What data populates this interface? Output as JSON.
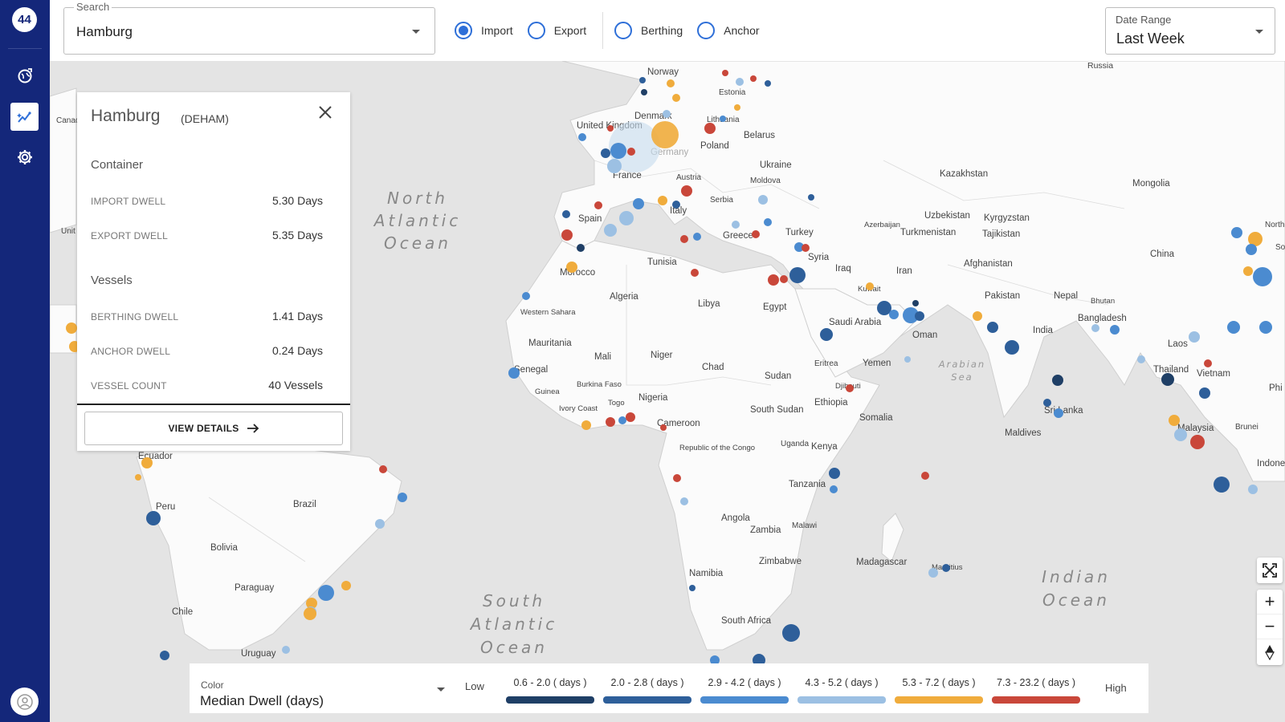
{
  "app": {
    "logo_text": "44"
  },
  "sidebar": {
    "items": [
      {
        "name": "globe-icon"
      },
      {
        "name": "analytics-icon",
        "active": true
      },
      {
        "name": "gear-icon"
      }
    ],
    "profile_icon": "user-circle-icon"
  },
  "search": {
    "label": "Search",
    "value": "Hamburg"
  },
  "flow_filter": {
    "options": [
      {
        "label": "Import",
        "selected": true
      },
      {
        "label": "Export",
        "selected": false
      }
    ]
  },
  "dwell_filter": {
    "options": [
      {
        "label": "Berthing",
        "selected": false
      },
      {
        "label": "Anchor",
        "selected": false
      }
    ]
  },
  "date_range": {
    "label": "Date Range",
    "value": "Last Week"
  },
  "port_card": {
    "port_name": "Hamburg",
    "port_code": "(DEHAM)",
    "container_section": "Container",
    "import_dwell_label": "IMPORT DWELL",
    "import_dwell_value": "5.30 Days",
    "export_dwell_label": "EXPORT DWELL",
    "export_dwell_value": "5.35 Days",
    "vessels_section": "Vessels",
    "berthing_dwell_label": "BERTHING DWELL",
    "berthing_dwell_value": "1.41 Days",
    "anchor_dwell_label": "ANCHOR DWELL",
    "anchor_dwell_value": "0.24 Days",
    "vessel_count_label": "VESSEL COUNT",
    "vessel_count_value": "40 Vessels",
    "view_details_label": "VIEW DETAILS"
  },
  "legend": {
    "color_label": "Color",
    "color_value": "Median Dwell (days)",
    "low_label": "Low",
    "high_label": "High",
    "buckets": [
      {
        "label": "0.6 - 2.0 ( days )",
        "color": "#1f3f66"
      },
      {
        "label": "2.0 - 2.8 ( days )",
        "color": "#2e5f9a"
      },
      {
        "label": "2.9 - 4.2 ( days )",
        "color": "#4b8bd0"
      },
      {
        "label": "4.3 - 5.2 ( days )",
        "color": "#9cc0e3"
      },
      {
        "label": "5.3 - 7.2 ( days )",
        "color": "#f0ac3c"
      },
      {
        "label": "7.3 - 23.2 ( days )",
        "color": "#c9473a"
      }
    ]
  },
  "map": {
    "country_labels": [
      "Norway",
      "Estonia",
      "United Kingdom",
      "Denmark",
      "Germany",
      "Lithuania",
      "Belarus",
      "Poland",
      "France",
      "Austria",
      "Ukraine",
      "Moldova",
      "Serbia",
      "Italy",
      "Spain",
      "Greece",
      "Turkey",
      "Syria",
      "Iraq",
      "Iran",
      "Azerbaijan",
      "Uzbekistan",
      "Kyrgyzstan",
      "Turkmenistan",
      "Tajikistan",
      "Afghanistan",
      "Kazakhstan",
      "Mongolia",
      "China",
      "Pakistan",
      "Nepal",
      "Bhutan",
      "Bangladesh",
      "India",
      "Laos",
      "Thailand",
      "Vietnam",
      "Malaysia",
      "Brunei",
      "Indonesia",
      "Sri Lanka",
      "Maldives",
      "Morocco",
      "Tunisia",
      "Algeria",
      "Libya",
      "Egypt",
      "Western Sahara",
      "Mauritania",
      "Mali",
      "Niger",
      "Chad",
      "Sudan",
      "Senegal",
      "Guinea",
      "Burkina Faso",
      "Ivory Coast",
      "Togo",
      "Nigeria",
      "Cameroon",
      "Republic of the Congo",
      "Uganda",
      "Kenya",
      "Eritrea",
      "Djibouti",
      "Yemen",
      "Saudi Arabia",
      "Oman",
      "Kuwait",
      "Ethiopia",
      "Somalia",
      "South Sudan",
      "Tanzania",
      "Angola",
      "Zambia",
      "Malawi",
      "Namibia",
      "Zimbabwe",
      "Madagascar",
      "Mauritius",
      "South Africa",
      "Ecuador",
      "Peru",
      "Brazil",
      "Bolivia",
      "Paraguay",
      "Chile",
      "Uruguay",
      "Russia",
      "Canada",
      "Unit",
      "Phi",
      "North",
      "So"
    ],
    "ocean_labels": [
      "North Atlantic Ocean",
      "South Atlantic Ocean",
      "Indian Ocean",
      "Arabian Sea"
    ],
    "controls": {
      "fullscreen_icon": "fullscreen-icon",
      "zoom_in": "+",
      "zoom_out": "−",
      "compass_icon": "compass-icon"
    }
  }
}
